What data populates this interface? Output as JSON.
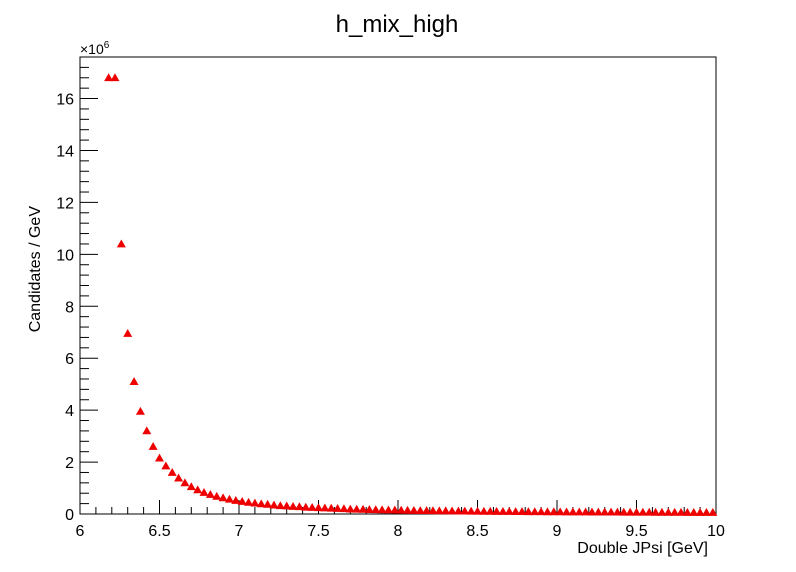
{
  "chart_data": {
    "type": "scatter",
    "title": "h_mix_high",
    "xlabel": "Double JPsi [GeV]",
    "ylabel": "Candidates / GeV",
    "y_exponent_label": "×10",
    "y_exponent_power": "6",
    "xlim": [
      6.0,
      10.0
    ],
    "ylim": [
      0,
      17.6
    ],
    "x_ticks": [
      "6",
      "6.5",
      "7",
      "7.5",
      "8",
      "8.5",
      "9",
      "9.5",
      "10"
    ],
    "y_ticks": [
      "0",
      "2",
      "4",
      "6",
      "8",
      "10",
      "12",
      "14",
      "16"
    ],
    "marker": "triangle",
    "marker_color": "#ee0000",
    "grid": false,
    "series": [
      {
        "x": [
          6.18,
          6.22,
          6.26,
          6.3,
          6.34,
          6.38,
          6.42,
          6.46,
          6.5,
          6.54,
          6.58,
          6.62,
          6.66,
          6.7,
          6.74,
          6.78,
          6.82,
          6.86,
          6.9,
          6.94,
          6.98,
          7.02,
          7.06,
          7.1,
          7.14,
          7.18,
          7.22,
          7.26,
          7.3,
          7.34,
          7.38,
          7.42,
          7.46,
          7.5,
          7.54,
          7.58,
          7.62,
          7.66,
          7.7,
          7.74,
          7.78,
          7.82,
          7.86,
          7.9,
          7.94,
          7.98,
          8.02,
          8.06,
          8.1,
          8.14,
          8.18,
          8.22,
          8.26,
          8.3,
          8.34,
          8.38,
          8.42,
          8.46,
          8.5,
          8.54,
          8.58,
          8.62,
          8.66,
          8.7,
          8.74,
          8.78,
          8.82,
          8.86,
          8.9,
          8.94,
          8.98,
          9.02,
          9.06,
          9.1,
          9.14,
          9.18,
          9.22,
          9.26,
          9.3,
          9.34,
          9.38,
          9.42,
          9.46,
          9.5,
          9.54,
          9.58,
          9.62,
          9.66,
          9.7,
          9.74,
          9.78,
          9.82,
          9.86,
          9.9,
          9.94,
          9.98
        ],
        "y": [
          16.8,
          16.8,
          10.4,
          6.95,
          5.1,
          3.95,
          3.2,
          2.6,
          2.15,
          1.85,
          1.6,
          1.38,
          1.2,
          1.05,
          0.93,
          0.83,
          0.75,
          0.68,
          0.62,
          0.57,
          0.52,
          0.48,
          0.45,
          0.42,
          0.39,
          0.37,
          0.34,
          0.32,
          0.31,
          0.29,
          0.28,
          0.26,
          0.25,
          0.24,
          0.23,
          0.22,
          0.21,
          0.2,
          0.19,
          0.185,
          0.18,
          0.17,
          0.165,
          0.16,
          0.155,
          0.15,
          0.145,
          0.14,
          0.135,
          0.13,
          0.128,
          0.125,
          0.12,
          0.118,
          0.115,
          0.112,
          0.11,
          0.107,
          0.105,
          0.102,
          0.1,
          0.098,
          0.096,
          0.094,
          0.092,
          0.09,
          0.088,
          0.086,
          0.085,
          0.083,
          0.082,
          0.08,
          0.079,
          0.078,
          0.076,
          0.075,
          0.074,
          0.073,
          0.072,
          0.071,
          0.07,
          0.069,
          0.068,
          0.067,
          0.066,
          0.065,
          0.064,
          0.063,
          0.062,
          0.062,
          0.061,
          0.06,
          0.059,
          0.058,
          0.058,
          0.057
        ]
      }
    ]
  }
}
